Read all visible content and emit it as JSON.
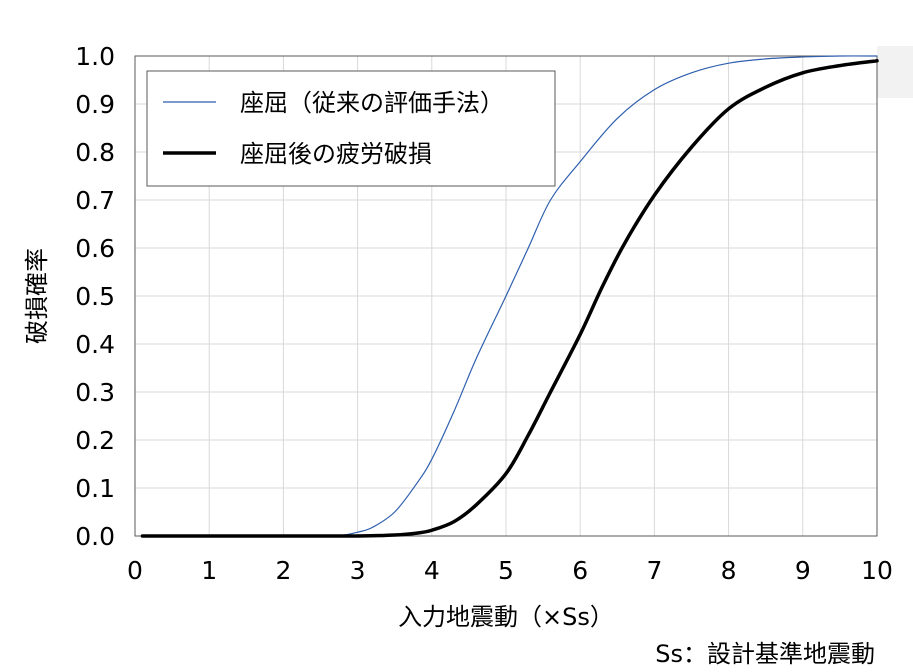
{
  "chart_data": {
    "type": "line",
    "title": "",
    "xlabel": "入力地震動（×Ss）",
    "ylabel": "破損確率",
    "note": "Ss：設計基準地震動",
    "xlim": [
      0,
      10
    ],
    "ylim": [
      0,
      1
    ],
    "xticks": [
      "0",
      "1",
      "2",
      "3",
      "4",
      "5",
      "6",
      "7",
      "8",
      "9",
      "10"
    ],
    "yticks": [
      "0.0",
      "0.1",
      "0.2",
      "0.3",
      "0.4",
      "0.5",
      "0.6",
      "0.7",
      "0.8",
      "0.9",
      "1.0"
    ],
    "grid": true,
    "legend_position": "top-left",
    "series": [
      {
        "name": "座屈（従来の評価手法）",
        "color": "#2f5fae",
        "x": [
          0.1,
          1,
          2,
          2.5,
          2.8,
          3,
          3.2,
          3.5,
          3.8,
          4,
          4.3,
          4.6,
          5,
          5.3,
          5.6,
          6,
          6.5,
          7,
          7.5,
          8,
          8.5,
          9,
          9.5,
          10
        ],
        "y": [
          0,
          0,
          0,
          0,
          0.002,
          0.008,
          0.018,
          0.05,
          0.11,
          0.16,
          0.26,
          0.37,
          0.5,
          0.6,
          0.7,
          0.78,
          0.87,
          0.93,
          0.965,
          0.985,
          0.994,
          0.998,
          1.0,
          1.0
        ]
      },
      {
        "name": "座屈後の疲労破損",
        "color": "#000000",
        "x": [
          0.1,
          1,
          2,
          3,
          3.5,
          3.8,
          4,
          4.3,
          4.6,
          5,
          5.3,
          5.6,
          6,
          6.3,
          6.6,
          7,
          7.5,
          8,
          8.5,
          9,
          9.5,
          10
        ],
        "y": [
          0,
          0,
          0,
          0,
          0.002,
          0.006,
          0.012,
          0.03,
          0.065,
          0.13,
          0.21,
          0.3,
          0.42,
          0.52,
          0.61,
          0.71,
          0.81,
          0.89,
          0.935,
          0.965,
          0.98,
          0.99
        ]
      }
    ]
  }
}
